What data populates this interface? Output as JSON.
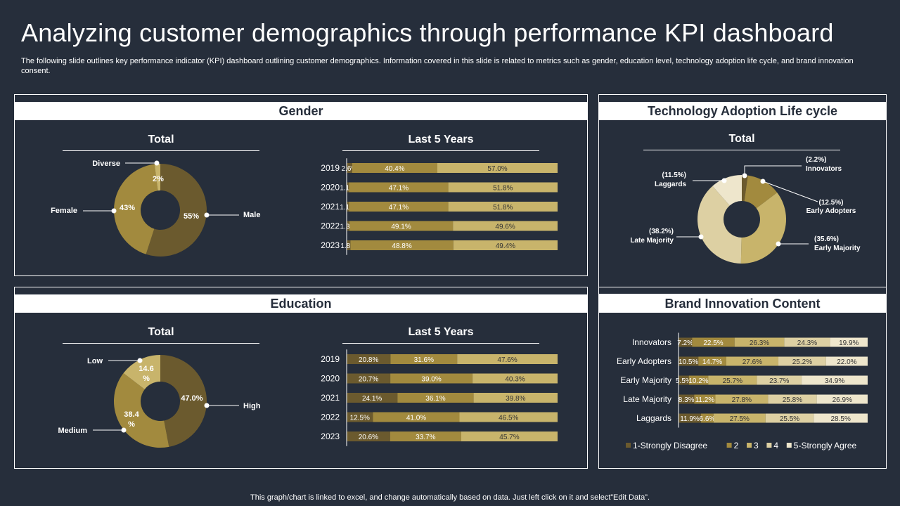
{
  "title": "Analyzing customer demographics through performance KPI dashboard",
  "subtitle": "The following slide outlines key performance indicator (KPI) dashboard outlining customer demographics. Information covered in this slide is related to metrics such as gender, education level, technology adoption life cycle, and brand innovation consent.",
  "footer": "This graph/chart is linked to excel, and change automatically based on data. Just left click on it and select”Edit Data”.",
  "colors": {
    "background": "#262e3b",
    "c1": "#6b5a2e",
    "c2": "#a28a3e",
    "c3": "#c8b46b",
    "c4": "#ddd0a3",
    "c5": "#eee6cc"
  },
  "gender": {
    "header": "Gender",
    "total_title": "Total",
    "last5_title": "Last 5 Years"
  },
  "education": {
    "header": "Education",
    "total_title": "Total",
    "last5_title": "Last 5 Years"
  },
  "tech": {
    "header": "Technology Adoption Life cycle",
    "total_title": "Total"
  },
  "brand": {
    "header": "Brand Innovation Content"
  },
  "chart_data": [
    {
      "id": "gender_total",
      "type": "pie",
      "title": "Total",
      "slices": [
        {
          "label": "Male",
          "value": 55,
          "text": "55%",
          "color": "#6b5a2e"
        },
        {
          "label": "Female",
          "value": 43,
          "text": "43%",
          "color": "#a28a3e"
        },
        {
          "label": "Diverse",
          "value": 2,
          "text": "2%",
          "color": "#c8b46b"
        }
      ]
    },
    {
      "id": "gender_last5",
      "type": "bar",
      "stacked": true,
      "orientation": "horizontal",
      "title": "Last 5 Years",
      "categories": [
        "2019",
        "2020",
        "2021",
        "2022",
        "2023"
      ],
      "series": [
        {
          "name": "Diverse",
          "values": [
            2.6,
            1.1,
            1.1,
            1.3,
            1.8
          ],
          "labels": [
            "2.6%",
            "1.1%",
            "1.1%",
            "1.3%",
            "1.8%"
          ],
          "color": "#6b5a2e"
        },
        {
          "name": "Female",
          "values": [
            40.4,
            47.1,
            47.1,
            49.1,
            48.8
          ],
          "labels": [
            "40.4%",
            "47.1%",
            "47.1%",
            "49.1%",
            "48.8%"
          ],
          "color": "#a28a3e"
        },
        {
          "name": "Male",
          "values": [
            57.0,
            51.8,
            51.8,
            49.6,
            49.4
          ],
          "labels": [
            "57.0%",
            "51.8%",
            "51.8%",
            "49.6%",
            "49.4%"
          ],
          "color": "#c8b46b"
        }
      ]
    },
    {
      "id": "education_total",
      "type": "pie",
      "title": "Total",
      "slices": [
        {
          "label": "High",
          "value": 47.0,
          "text": "47.0%",
          "color": "#6b5a2e"
        },
        {
          "label": "Medium",
          "value": 38.4,
          "text": "38.4 %",
          "color": "#a28a3e"
        },
        {
          "label": "Low",
          "value": 14.6,
          "text": "14.6 %",
          "color": "#c8b46b"
        }
      ]
    },
    {
      "id": "education_last5",
      "type": "bar",
      "stacked": true,
      "orientation": "horizontal",
      "title": "Last 5 Years",
      "categories": [
        "2019",
        "2020",
        "2021",
        "2022",
        "2023"
      ],
      "series": [
        {
          "name": "Low",
          "values": [
            20.8,
            20.7,
            24.1,
            12.5,
            20.6
          ],
          "labels": [
            "20.8%",
            "20.7%",
            "24.1%",
            "12.5%",
            "20.6%"
          ],
          "color": "#6b5a2e"
        },
        {
          "name": "Medium",
          "values": [
            31.6,
            39.0,
            36.1,
            41.0,
            33.7
          ],
          "labels": [
            "31.6%",
            "39.0%",
            "36.1%",
            "41.0%",
            "33.7%"
          ],
          "color": "#a28a3e"
        },
        {
          "name": "High",
          "values": [
            47.6,
            40.3,
            39.8,
            46.5,
            45.7
          ],
          "labels": [
            "47.6%",
            "40.3%",
            "39.8%",
            "46.5%",
            "45.7%"
          ],
          "color": "#c8b46b"
        }
      ]
    },
    {
      "id": "tech_total",
      "type": "pie",
      "title": "Total",
      "slices": [
        {
          "label": "Innovators",
          "value": 2.2,
          "text": "(2.2%)",
          "color": "#6b5a2e"
        },
        {
          "label": "Early Adopters",
          "value": 12.5,
          "text": "(12.5%)",
          "color": "#a28a3e"
        },
        {
          "label": "Early Majority",
          "value": 35.6,
          "text": "(35.6%)",
          "color": "#c8b46b"
        },
        {
          "label": "Late Majority",
          "value": 38.2,
          "text": "(38.2%)",
          "color": "#ddd0a3"
        },
        {
          "label": "Laggards",
          "value": 11.5,
          "text": "(11.5%)",
          "color": "#eee6cc"
        }
      ]
    },
    {
      "id": "brand_innovation",
      "type": "bar",
      "stacked": true,
      "orientation": "horizontal",
      "title": "Brand Innovation Content",
      "categories": [
        "Innovators",
        "Early Adopters",
        "Early Majority",
        "Late Majority",
        "Laggards"
      ],
      "series": [
        {
          "name": "1-Strongly Disagree",
          "values": [
            7.2,
            10.5,
            5.5,
            8.3,
            11.9
          ],
          "labels": [
            "7.2%",
            "10.5%",
            "5.5%",
            "8.3%",
            "11.9%"
          ],
          "color": "#6b5a2e"
        },
        {
          "name": "2",
          "values": [
            22.5,
            14.7,
            10.2,
            11.2,
            6.6
          ],
          "labels": [
            "22.5%",
            "14.7%",
            "10.2%",
            "11.2%",
            "6.6%"
          ],
          "color": "#a28a3e"
        },
        {
          "name": "3",
          "values": [
            26.3,
            27.6,
            25.7,
            27.8,
            27.5
          ],
          "labels": [
            "26.3%",
            "27.6%",
            "25.7%",
            "27.8%",
            "27.5%"
          ],
          "color": "#c8b46b"
        },
        {
          "name": "4",
          "values": [
            24.3,
            25.2,
            23.7,
            25.8,
            25.5
          ],
          "labels": [
            "24.3%",
            "25.2%",
            "23.7%",
            "25.8%",
            "25.5%"
          ],
          "color": "#ddd0a3"
        },
        {
          "name": "5-Strongly Agree",
          "values": [
            19.9,
            22.0,
            34.9,
            26.9,
            28.5
          ],
          "labels": [
            "19.9%",
            "22.0%",
            "34.9%",
            "26.9%",
            "28.5%"
          ],
          "color": "#eee6cc"
        }
      ]
    }
  ]
}
